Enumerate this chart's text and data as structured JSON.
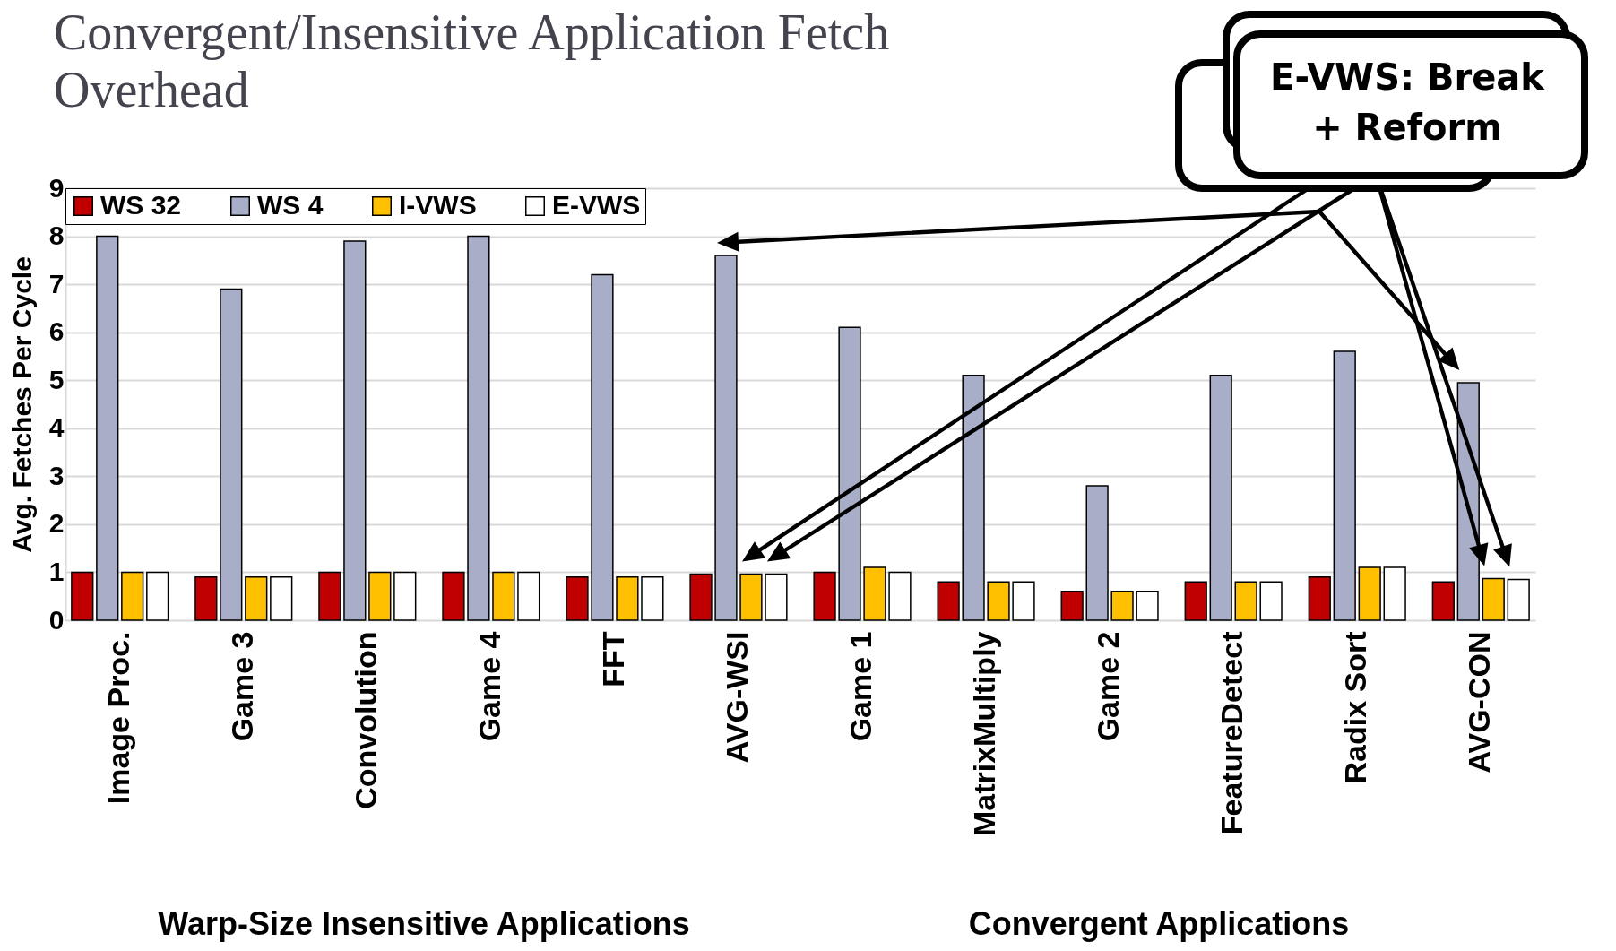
{
  "chart_data": {
    "type": "bar",
    "title": "Convergent/Insensitive Application Fetch Overhead",
    "ylabel": "Avg. Fetches Per Cycle",
    "categories": [
      "Image Proc.",
      "Game 3",
      "Convolution",
      "Game 4",
      "FFT",
      "AVG-WSI",
      "Game 1",
      "MatrixMultiply",
      "Game 2",
      "FeatureDetect",
      "Radix Sort",
      "AVG-CON"
    ],
    "series": [
      {
        "name": "WS 32",
        "color": "#c00000",
        "values": [
          1.0,
          0.9,
          1.0,
          1.0,
          0.9,
          0.96,
          1.0,
          0.8,
          0.6,
          0.8,
          0.9,
          0.8
        ]
      },
      {
        "name": "WS 4",
        "color": "#a9aec8",
        "values": [
          8.0,
          6.9,
          7.9,
          8.0,
          7.2,
          7.6,
          6.1,
          5.1,
          2.8,
          5.1,
          5.6,
          4.95
        ]
      },
      {
        "name": "I-VWS",
        "color": "#ffc000",
        "values": [
          1.0,
          0.9,
          1.0,
          1.0,
          0.9,
          0.96,
          1.1,
          0.8,
          0.6,
          0.8,
          1.1,
          0.87
        ]
      },
      {
        "name": "E-VWS",
        "color": "#ffffff",
        "values": [
          1.0,
          0.9,
          1.0,
          1.0,
          0.9,
          0.96,
          1.0,
          0.8,
          0.6,
          0.8,
          1.1,
          0.85
        ]
      }
    ],
    "ylim": [
      0,
      9
    ],
    "yticks": [
      0,
      1,
      2,
      3,
      4,
      5,
      6,
      7,
      8,
      9
    ],
    "grid": "y",
    "legend": "top left",
    "annotations": [
      "E-VWS: Break + Reform",
      "Warp-Size Insensitive Applications",
      "Convergent Applications"
    ]
  }
}
